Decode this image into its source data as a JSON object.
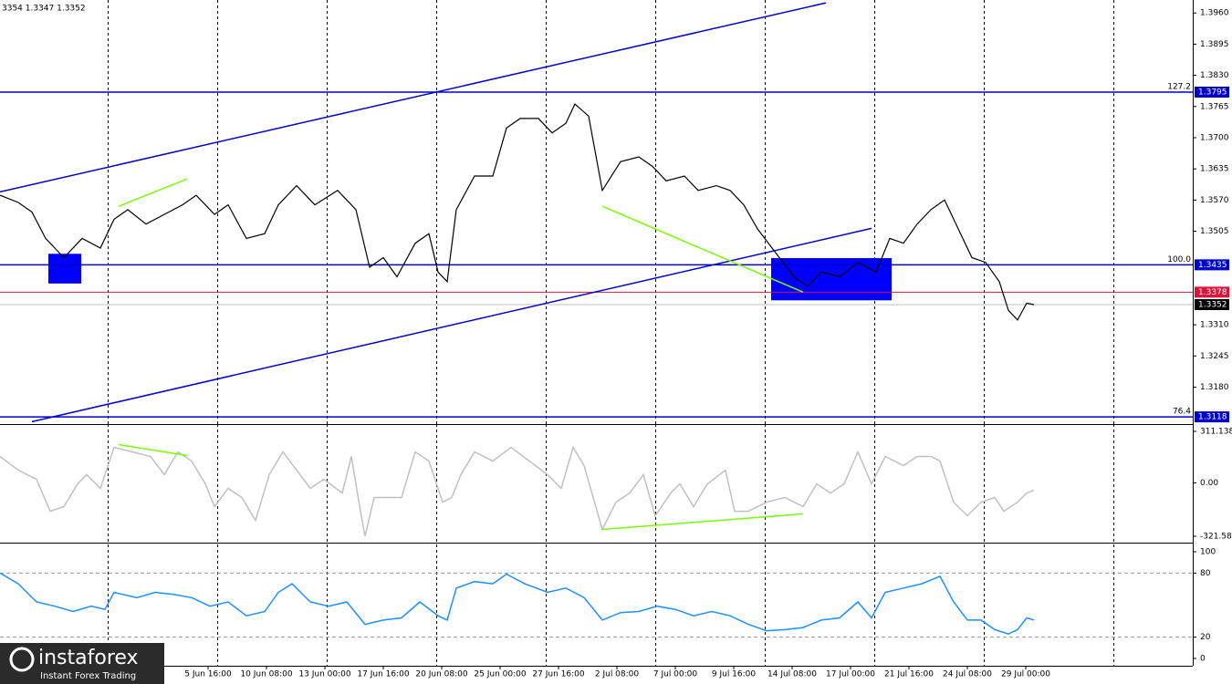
{
  "header": {
    "ohlc": "3354 1.3347 1.3352"
  },
  "logo": {
    "name": "instaforex",
    "tagline": "Instant Forex Trading"
  },
  "chart_data": [
    {
      "type": "line",
      "x": [
        0,
        20,
        35,
        50,
        70,
        90,
        110,
        125,
        140,
        160,
        180,
        200,
        215,
        235,
        250,
        270,
        290,
        305,
        325,
        345,
        370,
        390,
        405,
        420,
        435,
        455,
        470,
        480,
        490,
        500,
        520,
        540,
        555,
        570,
        590,
        605,
        620,
        630,
        645,
        660,
        680,
        700,
        715,
        730,
        750,
        765,
        785,
        800,
        815,
        830,
        850,
        870,
        885,
        900,
        920,
        940,
        960,
        975,
        990,
        1005,
        1020,
        1035,
        1050,
        1065,
        1080,
        1095,
        1105,
        1115,
        1125,
        1133
      ],
      "series": [
        {
          "color": "#000000",
          "values": [
            1.358,
            1.3565,
            1.3545,
            1.349,
            1.345,
            1.349,
            1.347,
            1.353,
            1.355,
            1.352,
            1.354,
            1.356,
            1.358,
            1.354,
            1.356,
            1.349,
            1.35,
            1.356,
            1.36,
            1.356,
            1.359,
            1.355,
            1.343,
            1.345,
            1.341,
            1.348,
            1.35,
            1.342,
            1.34,
            1.355,
            1.362,
            1.362,
            1.372,
            1.374,
            1.374,
            1.371,
            1.373,
            1.377,
            1.3745,
            1.359,
            1.365,
            1.366,
            1.364,
            1.361,
            1.362,
            1.359,
            1.36,
            1.359,
            1.356,
            1.351,
            1.346,
            1.341,
            1.339,
            1.342,
            1.341,
            1.344,
            1.342,
            1.349,
            1.348,
            1.352,
            1.355,
            1.357,
            1.351,
            1.345,
            1.344,
            1.34,
            1.334,
            1.332,
            1.3355,
            1.3352
          ]
        }
      ],
      "xlim": [
        0,
        1307
      ],
      "ylim": [
        1.3103,
        1.3987
      ],
      "yticks": [
        {
          "value": 1.396,
          "label": "1.3960"
        },
        1.3895,
        {
          "value": 1.383,
          "label": "1.3830"
        },
        1.3765,
        {
          "value": 1.37,
          "label": "1.3700"
        },
        1.3635,
        {
          "value": 1.357,
          "label": "1.3570"
        },
        1.3505,
        {
          "value": 1.331,
          "label": "1.3310"
        },
        1.3245,
        {
          "value": 1.318,
          "label": "1.3180"
        }
      ],
      "xgrid": [
        118,
        238,
        358,
        478,
        598,
        718,
        838,
        958,
        1078,
        1220
      ],
      "levels": [
        {
          "value": 1.3795,
          "fib": "127.2",
          "color": "#0000cd",
          "tag": "#0000cd"
        },
        {
          "value": 1.3435,
          "fib": "100.0",
          "color": "#0000cd",
          "tag": "#0000cd"
        },
        {
          "value": 1.3118,
          "fib": "76.4",
          "color": "#0000cd",
          "tag": "#0000cd"
        },
        {
          "value": 1.3378,
          "color": "#dc143c",
          "tag": "#dc143c"
        },
        {
          "value": 1.3352,
          "color": "#c0c0c0",
          "tag": "#000000"
        }
      ],
      "lines": [
        {
          "x": [
            0,
            905
          ],
          "values": [
            1.3587,
            1.3981
          ],
          "color": "#0000cd"
        },
        {
          "x": [
            35,
            955
          ],
          "values": [
            1.3108,
            1.3511
          ],
          "color": "#0000cd"
        },
        {
          "x": [
            130,
            205
          ],
          "values": [
            1.3557,
            1.3614
          ],
          "color": "#7cfc00"
        },
        {
          "x": [
            660,
            880
          ],
          "values": [
            1.3557,
            1.3378
          ],
          "color": "#7cfc00"
        }
      ],
      "boxes": [
        {
          "x": [
            53,
            89
          ],
          "values": [
            1.3458,
            1.3396
          ],
          "color": "#0000ff"
        },
        {
          "x": [
            845,
            977
          ],
          "values": [
            1.3449,
            1.3361
          ],
          "color": "#0000ff"
        }
      ]
    },
    {
      "type": "line",
      "x": [
        0,
        20,
        40,
        55,
        70,
        85,
        95,
        110,
        125,
        145,
        165,
        180,
        195,
        210,
        225,
        235,
        250,
        265,
        280,
        295,
        310,
        325,
        340,
        355,
        375,
        385,
        395,
        400,
        410,
        425,
        440,
        455,
        470,
        485,
        495,
        505,
        520,
        540,
        560,
        580,
        600,
        615,
        628,
        640,
        650,
        660,
        675,
        690,
        705,
        718,
        735,
        745,
        760,
        775,
        795,
        805,
        820,
        840,
        860,
        880,
        895,
        910,
        925,
        940,
        955,
        970,
        990,
        1005,
        1020,
        1030,
        1045,
        1060,
        1075,
        1090,
        1100,
        1115,
        1125,
        1133
      ],
      "series": [
        {
          "color": "#c0c0c0",
          "values": [
            160,
            77,
            22,
            -171,
            -143,
            -6,
            50,
            -33,
            215,
            187,
            160,
            50,
            187,
            132,
            -6,
            -143,
            -33,
            -88,
            -226,
            50,
            187,
            77,
            -33,
            22,
            -61,
            160,
            -171,
            -320,
            -88,
            -88,
            -88,
            187,
            132,
            -116,
            -88,
            50,
            187,
            132,
            215,
            132,
            50,
            -33,
            215,
            105,
            -88,
            -281,
            -116,
            -61,
            50,
            -198,
            -61,
            -6,
            -143,
            -6,
            77,
            -171,
            -171,
            -116,
            -88,
            -143,
            -6,
            -61,
            -6,
            187,
            -6,
            160,
            105,
            160,
            160,
            132,
            -116,
            -198,
            -116,
            -88,
            -171,
            -116,
            -61,
            -44
          ]
        }
      ],
      "xlim": [
        0,
        1307
      ],
      "ylim": [
        -360,
        355
      ],
      "yticks": [
        311.138,
        {
          "value": 0,
          "label": "0.00"
        },
        -321.584
      ],
      "lines": [
        {
          "x": [
            130,
            205
          ],
          "values": [
            231,
            165
          ],
          "color": "#7cfc00"
        },
        {
          "x": [
            660,
            880
          ],
          "values": [
            -280,
            -187
          ],
          "color": "#7cfc00"
        }
      ]
    },
    {
      "type": "line",
      "x": [
        0,
        20,
        40,
        60,
        80,
        100,
        115,
        125,
        150,
        170,
        190,
        210,
        230,
        250,
        270,
        290,
        305,
        320,
        340,
        360,
        380,
        400,
        420,
        440,
        460,
        480,
        490,
        500,
        520,
        540,
        555,
        575,
        600,
        620,
        640,
        660,
        680,
        700,
        720,
        740,
        760,
        780,
        800,
        820,
        840,
        860,
        880,
        900,
        920,
        940,
        955,
        970,
        990,
        1010,
        1030,
        1045,
        1060,
        1075,
        1090,
        1105,
        1115,
        1125,
        1133
      ],
      "series": [
        {
          "color": "#1e90ff",
          "values": [
            80,
            70,
            53,
            49,
            44,
            49,
            46,
            62,
            57,
            62,
            60,
            57,
            49,
            53,
            40,
            44,
            62,
            70,
            53,
            49,
            53,
            32,
            36,
            38,
            53,
            40,
            36,
            66,
            72,
            70,
            79,
            70,
            62,
            66,
            57,
            36,
            43,
            44,
            49,
            46,
            40,
            44,
            40,
            32,
            26,
            27,
            29,
            36,
            38,
            53,
            38,
            62,
            66,
            70,
            77,
            53,
            36,
            36,
            27,
            23,
            27,
            38,
            36
          ]
        }
      ],
      "xlim": [
        0,
        1307
      ],
      "ylim": [
        -6.8,
        106.8
      ],
      "yticks": [
        100,
        80,
        20,
        0
      ],
      "hlines": [
        80,
        20
      ],
      "xticks": [
        {
          "value": 228,
          "label": "5 Jun 16:00"
        },
        {
          "value": 292,
          "label": "10 Jun 08:00"
        },
        {
          "value": 356,
          "label": "13 Jun 00:00"
        },
        {
          "value": 420,
          "label": "17 Jun 16:00"
        },
        {
          "value": 484,
          "label": "20 Jun 08:00"
        },
        {
          "value": 548,
          "label": "25 Jun 00:00"
        },
        {
          "value": 612,
          "label": "27 Jun 16:00"
        },
        {
          "value": 676,
          "label": "2 Jul 08:00"
        },
        {
          "value": 740,
          "label": "7 Jul 00:00"
        },
        {
          "value": 804,
          "label": "9 Jul 16:00"
        },
        {
          "value": 868,
          "label": "14 Jul 08:00"
        },
        {
          "value": 932,
          "label": "17 Jul 00:00"
        },
        {
          "value": 996,
          "label": "21 Jul 16:00"
        },
        {
          "value": 1060,
          "label": "24 Jul 08:00"
        },
        {
          "value": 1124,
          "label": "29 Jul 00:00"
        }
      ]
    }
  ]
}
